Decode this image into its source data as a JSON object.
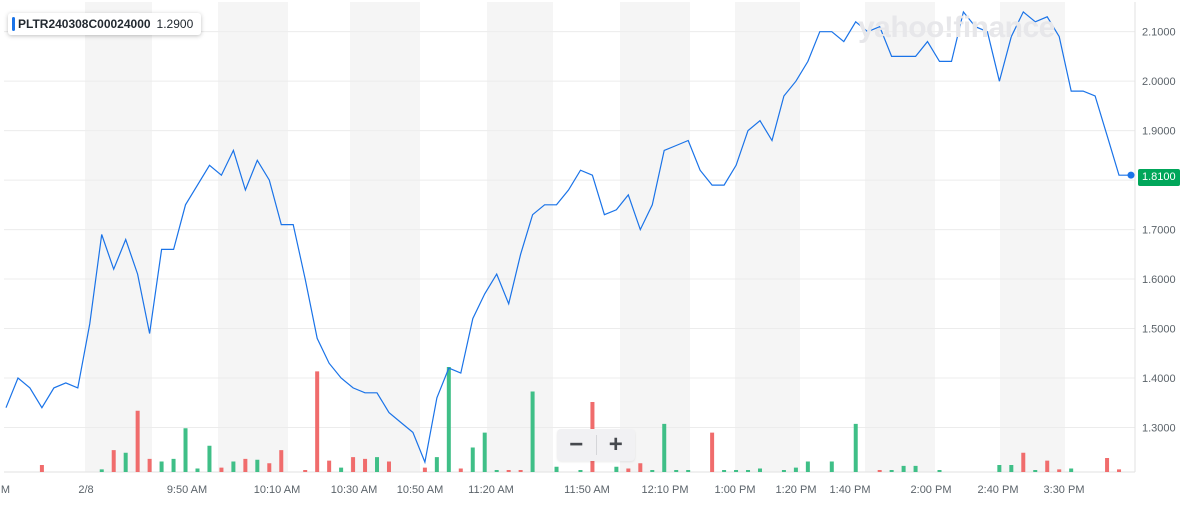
{
  "legend": {
    "symbol": "PLTR240308C00024000",
    "value": "1.2900"
  },
  "watermark": "yahoo!finance",
  "zoom": {
    "minus": "−",
    "plus": "+"
  },
  "last_price_label": "1.8100",
  "colors": {
    "line": "#1a73e8",
    "up_volume": "#3fbf87",
    "down_volume": "#f06c6c",
    "band": "#f5f5f5",
    "last_price": "#00a65a"
  },
  "chart_data": {
    "type": "line",
    "title": "",
    "ylim": [
      1.21,
      2.16
    ],
    "y_ticks": [
      "1.3000",
      "1.4000",
      "1.5000",
      "1.6000",
      "1.7000",
      "1.8000",
      "1.9000",
      "2.0000",
      "2.1000"
    ],
    "x_tick_labels": [
      "M",
      "2/8",
      "9:50 AM",
      "10:10 AM",
      "10:30 AM",
      "10:50 AM",
      "11:20 AM",
      "11:50 AM",
      "12:10 PM",
      "1:00 PM",
      "1:20 PM",
      "1:40 PM",
      "2:00 PM",
      "2:40 PM",
      "3:30 PM"
    ],
    "series": [
      {
        "values": [
          1.34,
          1.4,
          1.38,
          1.34,
          1.38,
          1.39,
          1.38,
          1.51,
          1.69,
          1.62,
          1.68,
          1.61,
          1.49,
          1.66,
          1.66,
          1.75,
          1.79,
          1.83,
          1.81,
          1.86,
          1.78,
          1.84,
          1.8,
          1.71,
          1.71,
          1.6,
          1.48,
          1.43,
          1.4,
          1.38,
          1.37,
          1.37,
          1.33,
          1.31,
          1.29,
          1.23,
          1.36,
          1.42,
          1.41,
          1.52,
          1.57,
          1.61,
          1.55,
          1.65,
          1.73,
          1.75,
          1.75,
          1.78,
          1.82,
          1.81,
          1.73,
          1.74,
          1.77,
          1.7,
          1.75,
          1.86,
          1.87,
          1.88,
          1.82,
          1.79,
          1.79,
          1.83,
          1.9,
          1.92,
          1.88,
          1.97,
          2.0,
          2.04,
          2.1,
          2.1,
          2.08,
          2.12,
          2.1,
          2.11,
          2.05,
          2.05,
          2.05,
          2.08,
          2.04,
          2.04,
          2.14,
          2.11,
          2.1,
          2.0,
          2.09,
          2.14,
          2.12,
          2.13,
          2.09,
          1.98,
          1.98,
          1.97,
          1.89,
          1.81,
          1.81
        ]
      }
    ],
    "volume": [
      {
        "v": 0,
        "d": "up"
      },
      {
        "v": 0,
        "d": "up"
      },
      {
        "v": 0,
        "d": "up"
      },
      {
        "v": 0.08,
        "d": "down"
      },
      {
        "v": 0,
        "d": "up"
      },
      {
        "v": 0,
        "d": "up"
      },
      {
        "v": 0,
        "d": "up"
      },
      {
        "v": 0,
        "d": "up"
      },
      {
        "v": 0.03,
        "d": "up"
      },
      {
        "v": 0.25,
        "d": "down"
      },
      {
        "v": 0.22,
        "d": "up"
      },
      {
        "v": 0.7,
        "d": "down"
      },
      {
        "v": 0.15,
        "d": "down"
      },
      {
        "v": 0.12,
        "d": "up"
      },
      {
        "v": 0.15,
        "d": "up"
      },
      {
        "v": 0.5,
        "d": "up"
      },
      {
        "v": 0.04,
        "d": "up"
      },
      {
        "v": 0.3,
        "d": "up"
      },
      {
        "v": 0.05,
        "d": "down"
      },
      {
        "v": 0.12,
        "d": "up"
      },
      {
        "v": 0.15,
        "d": "down"
      },
      {
        "v": 0.14,
        "d": "up"
      },
      {
        "v": 0.1,
        "d": "down"
      },
      {
        "v": 0.25,
        "d": "down"
      },
      {
        "v": 0,
        "d": "up"
      },
      {
        "v": 0.02,
        "d": "down"
      },
      {
        "v": 1.15,
        "d": "down"
      },
      {
        "v": 0.13,
        "d": "down"
      },
      {
        "v": 0.05,
        "d": "up"
      },
      {
        "v": 0.17,
        "d": "down"
      },
      {
        "v": 0.15,
        "d": "down"
      },
      {
        "v": 0.17,
        "d": "up"
      },
      {
        "v": 0.12,
        "d": "down"
      },
      {
        "v": 0,
        "d": "up"
      },
      {
        "v": 0,
        "d": "up"
      },
      {
        "v": 0.05,
        "d": "down"
      },
      {
        "v": 0.17,
        "d": "up"
      },
      {
        "v": 1.2,
        "d": "up"
      },
      {
        "v": 0.04,
        "d": "down"
      },
      {
        "v": 0.28,
        "d": "up"
      },
      {
        "v": 0.45,
        "d": "up"
      },
      {
        "v": 0.02,
        "d": "up"
      },
      {
        "v": 0.02,
        "d": "down"
      },
      {
        "v": 0.02,
        "d": "down"
      },
      {
        "v": 0.92,
        "d": "up"
      },
      {
        "v": 0,
        "d": "up"
      },
      {
        "v": 0.06,
        "d": "up"
      },
      {
        "v": 0,
        "d": "up"
      },
      {
        "v": 0.02,
        "d": "up"
      },
      {
        "v": 0.8,
        "d": "down"
      },
      {
        "v": 0,
        "d": "up"
      },
      {
        "v": 0.06,
        "d": "up"
      },
      {
        "v": 0.04,
        "d": "down"
      },
      {
        "v": 0.1,
        "d": "down"
      },
      {
        "v": 0.02,
        "d": "up"
      },
      {
        "v": 0.55,
        "d": "up"
      },
      {
        "v": 0.02,
        "d": "up"
      },
      {
        "v": 0.02,
        "d": "up"
      },
      {
        "v": 0,
        "d": "up"
      },
      {
        "v": 0.45,
        "d": "down"
      },
      {
        "v": 0.02,
        "d": "up"
      },
      {
        "v": 0.02,
        "d": "up"
      },
      {
        "v": 0.02,
        "d": "up"
      },
      {
        "v": 0.04,
        "d": "up"
      },
      {
        "v": 0,
        "d": "up"
      },
      {
        "v": 0.02,
        "d": "up"
      },
      {
        "v": 0.05,
        "d": "up"
      },
      {
        "v": 0.12,
        "d": "up"
      },
      {
        "v": 0,
        "d": "up"
      },
      {
        "v": 0.12,
        "d": "up"
      },
      {
        "v": 0,
        "d": "up"
      },
      {
        "v": 0.55,
        "d": "up"
      },
      {
        "v": 0,
        "d": "up"
      },
      {
        "v": 0.02,
        "d": "down"
      },
      {
        "v": 0.02,
        "d": "up"
      },
      {
        "v": 0.07,
        "d": "up"
      },
      {
        "v": 0.07,
        "d": "up"
      },
      {
        "v": 0,
        "d": "up"
      },
      {
        "v": 0.02,
        "d": "up"
      },
      {
        "v": 0,
        "d": "up"
      },
      {
        "v": 0,
        "d": "up"
      },
      {
        "v": 0,
        "d": "up"
      },
      {
        "v": 0,
        "d": "up"
      },
      {
        "v": 0.08,
        "d": "up"
      },
      {
        "v": 0.08,
        "d": "up"
      },
      {
        "v": 0.22,
        "d": "down"
      },
      {
        "v": 0.02,
        "d": "up"
      },
      {
        "v": 0.13,
        "d": "down"
      },
      {
        "v": 0.03,
        "d": "down"
      },
      {
        "v": 0.04,
        "d": "up"
      },
      {
        "v": 0,
        "d": "up"
      },
      {
        "v": 0,
        "d": "up"
      },
      {
        "v": 0.16,
        "d": "down"
      },
      {
        "v": 0.03,
        "d": "down"
      },
      {
        "v": 0,
        "d": "up"
      }
    ]
  }
}
